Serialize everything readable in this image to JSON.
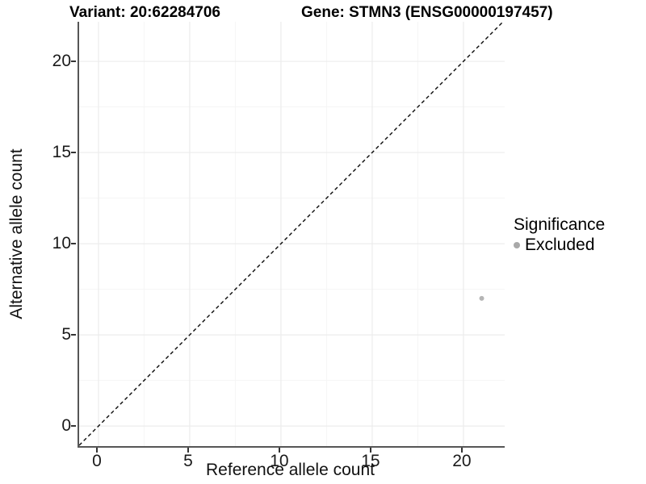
{
  "chart_data": {
    "type": "scatter",
    "title": {
      "left": "Variant: 20:62284706",
      "right": "Gene: STMN3 (ENSG00000197457)"
    },
    "xlabel": "Reference allele count",
    "ylabel": "Alternative allele count",
    "xlim": [
      -1.06,
      22.26
    ],
    "ylim": [
      -1.1,
      22.17
    ],
    "xticks": [
      0,
      5,
      10,
      15,
      20
    ],
    "yticks": [
      0,
      5,
      10,
      15,
      20
    ],
    "xminor": [
      2.5,
      7.5,
      12.5,
      17.5
    ],
    "yminor": [
      2.5,
      7.5,
      12.5,
      17.5
    ],
    "grid": "major and minor gridlines, white panel background",
    "points": [
      {
        "x": 21,
        "y": 7,
        "series": "Excluded"
      }
    ],
    "identity_line": {
      "equation": "y = x",
      "style": "dashed",
      "color": "#0a0a0a"
    },
    "legend": {
      "title": "Significance",
      "position": "right",
      "items": [
        {
          "label": "Excluded",
          "color": "#a9a9a9"
        }
      ]
    },
    "colors": {
      "point": "#b5b5b5",
      "axis_line": "#565656",
      "tick_mark": "#333333",
      "grid_major": "#ececec",
      "grid_minor": "#f5f5f5",
      "text": "#000000"
    }
  }
}
